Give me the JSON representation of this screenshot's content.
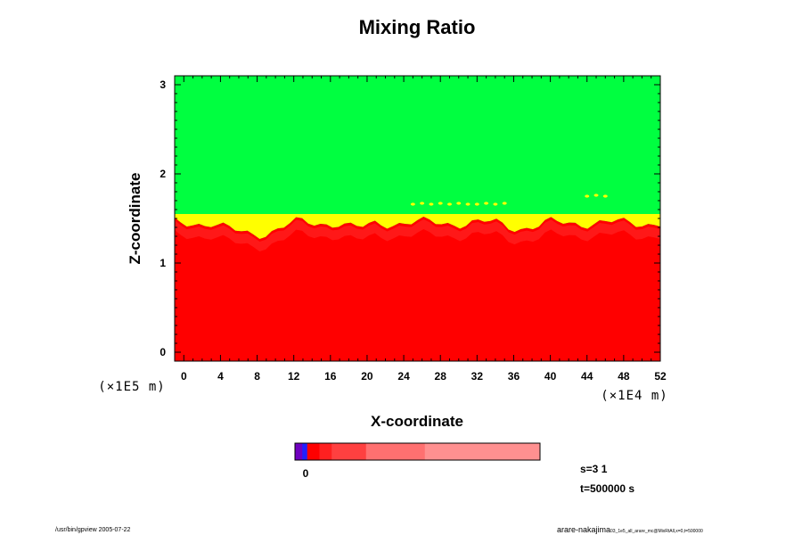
{
  "chart_data": {
    "type": "heatmap",
    "title": "Mixing Ratio",
    "xlabel": "X-coordinate",
    "ylabel": "Z-coordinate",
    "x_unit": "(×1E4 m)",
    "y_unit": "(×1E5 m)",
    "xlim": [
      -1,
      52
    ],
    "ylim": [
      -0.1,
      3.1
    ],
    "x_ticks": [
      "0",
      "4",
      "8",
      "12",
      "16",
      "20",
      "24",
      "28",
      "32",
      "36",
      "40",
      "44",
      "48",
      "52"
    ],
    "y_ticks": [
      "0",
      "1",
      "2",
      "3"
    ],
    "regions": [
      {
        "name": "upper",
        "color": "#00ff40",
        "z_range": [
          1.55,
          3.1
        ]
      },
      {
        "name": "transition",
        "color": "#ffff00",
        "z_range": [
          1.45,
          1.55
        ]
      },
      {
        "name": "lower",
        "color": "#ff0000",
        "z_range": [
          -0.1,
          1.45
        ]
      }
    ],
    "colorbar": {
      "label": "0",
      "colors": [
        "#7000c0",
        "#2020ff",
        "#ff0000",
        "#ff2020",
        "#ff4040",
        "#ff7070",
        "#ff9090"
      ],
      "fractions": [
        0.03,
        0.02,
        0.05,
        0.05,
        0.14,
        0.24,
        0.47
      ]
    },
    "info": {
      "s": "s=3 1",
      "t": "t=500000 s"
    }
  },
  "footer": {
    "left": "/usr/bin/gpview 2005-07-22",
    "right": "arare-nakajima",
    "right_small": "03_1e5_all_arare_mc@MixRtAll,x=0,t=500000"
  }
}
